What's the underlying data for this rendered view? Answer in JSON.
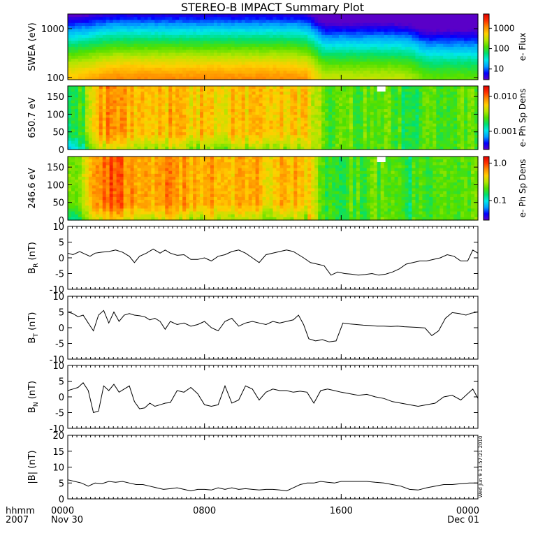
{
  "title": "STEREO-B IMPACT Summary Plot",
  "time_axis": {
    "corner_labels": [
      "hhmm",
      "2007"
    ],
    "ticks": [
      {
        "hhmm": "0000",
        "date": "Nov 30",
        "t": 0
      },
      {
        "hhmm": "0800",
        "date": "",
        "t": 8
      },
      {
        "hhmm": "1600",
        "date": "",
        "t": 16
      },
      {
        "hhmm": "0000",
        "date": "Dec 01",
        "t": 24
      }
    ],
    "range_hours": [
      0,
      24
    ]
  },
  "timestamp": "Wed Jun  9 13:57:21 2010",
  "colors": {
    "spectrogram_scale": [
      "#5a00c8",
      "#0000ff",
      "#00a0ff",
      "#00e8e8",
      "#00e070",
      "#50e000",
      "#b4e600",
      "#ffd000",
      "#ff8c00",
      "#ff3000",
      "#e00000"
    ],
    "line": "#000000",
    "data_gap": "#ffffff"
  },
  "chart_data": [
    {
      "type": "heatmap",
      "id": "swea",
      "ylabel": "SWEA (eV)",
      "yscale": "log",
      "ylim": [
        90,
        2000
      ],
      "yticks": [
        {
          "value": 100,
          "label": "100"
        },
        {
          "value": 1000,
          "label": "1000"
        }
      ],
      "colorbar": {
        "label": "e- Flux",
        "scale": "log",
        "range": [
          3,
          5000
        ],
        "ticks": [
          {
            "value": 10,
            "label": "10"
          },
          {
            "value": 100,
            "label": "100"
          },
          {
            "value": 1000,
            "label": "1000"
          }
        ]
      },
      "level_by_hour": [
        0.72,
        0.74,
        0.78,
        0.8,
        0.8,
        0.8,
        0.8,
        0.8,
        0.8,
        0.8,
        0.8,
        0.8,
        0.8,
        0.8,
        0.78,
        0.62,
        0.62,
        0.62,
        0.62,
        0.62,
        0.6,
        0.52,
        0.52,
        0.52,
        0.52
      ]
    },
    {
      "type": "heatmap",
      "id": "pad650",
      "ylabel": "650.7 eV",
      "ylim": [
        0,
        180
      ],
      "yticks": [
        {
          "value": 0,
          "label": "0"
        },
        {
          "value": 50,
          "label": "50"
        },
        {
          "value": 100,
          "label": "100"
        },
        {
          "value": 150,
          "label": "150"
        }
      ],
      "colorbar": {
        "label": "e- Ph Sp Dens",
        "scale": "log",
        "range": [
          0.0003,
          0.02
        ],
        "ticks": [
          {
            "value": 0.001,
            "label": "0.001"
          },
          {
            "value": 0.01,
            "label": "0.010"
          }
        ]
      },
      "level_by_hour": [
        0.45,
        0.5,
        0.78,
        0.82,
        0.7,
        0.72,
        0.74,
        0.7,
        0.72,
        0.68,
        0.72,
        0.74,
        0.7,
        0.72,
        0.7,
        0.5,
        0.5,
        0.5,
        0.52,
        0.48,
        0.45,
        0.5,
        0.5,
        0.5,
        0.5
      ]
    },
    {
      "type": "heatmap",
      "id": "pad246",
      "ylabel": "246.6 eV",
      "ylim": [
        0,
        180
      ],
      "yticks": [
        {
          "value": 0,
          "label": "0"
        },
        {
          "value": 50,
          "label": "50"
        },
        {
          "value": 100,
          "label": "100"
        },
        {
          "value": 150,
          "label": "150"
        }
      ],
      "colorbar": {
        "label": "e- Ph Sp Dens",
        "scale": "log",
        "range": [
          0.03,
          1.5
        ],
        "ticks": [
          {
            "value": 0.1,
            "label": "0.1"
          },
          {
            "value": 1.0,
            "label": "1.0"
          }
        ]
      },
      "level_by_hour": [
        0.5,
        0.62,
        0.85,
        0.86,
        0.74,
        0.76,
        0.8,
        0.74,
        0.76,
        0.72,
        0.74,
        0.74,
        0.72,
        0.74,
        0.72,
        0.5,
        0.48,
        0.48,
        0.5,
        0.48,
        0.44,
        0.48,
        0.48,
        0.5,
        0.5
      ]
    },
    {
      "type": "line",
      "id": "br",
      "ylabel_main": "B",
      "ylabel_sub": "R",
      "ylabel_unit": " (nT)",
      "ylim": [
        -10,
        10
      ],
      "yticks": [
        {
          "value": -10,
          "label": "-10"
        },
        {
          "value": -5,
          "label": "-5"
        },
        {
          "value": 0,
          "label": "0"
        },
        {
          "value": 5,
          "label": "5"
        },
        {
          "value": 10,
          "label": "10"
        }
      ],
      "x": [
        0,
        0.3,
        0.7,
        1.0,
        1.3,
        1.6,
        2.0,
        2.4,
        2.8,
        3.2,
        3.6,
        3.9,
        4.2,
        4.6,
        5.0,
        5.4,
        5.7,
        6.0,
        6.4,
        6.8,
        7.2,
        7.6,
        8.0,
        8.4,
        8.8,
        9.2,
        9.6,
        10.0,
        10.4,
        10.8,
        11.2,
        11.6,
        12.0,
        12.4,
        12.8,
        13.2,
        13.5,
        13.8,
        14.2,
        14.6,
        15.0,
        15.4,
        15.8,
        16.2,
        16.6,
        17.0,
        17.4,
        17.8,
        18.2,
        18.6,
        19.0,
        19.4,
        19.8,
        20.2,
        20.6,
        21.0,
        21.4,
        21.8,
        22.2,
        22.6,
        23.0,
        23.4,
        23.7,
        24.0
      ],
      "y": [
        1.5,
        1.0,
        2.0,
        1.2,
        0.5,
        1.5,
        1.8,
        2.0,
        2.5,
        1.8,
        0.5,
        -1.5,
        0.5,
        1.5,
        2.8,
        1.5,
        2.5,
        1.5,
        0.8,
        1.0,
        -0.5,
        -0.5,
        0.0,
        -1.0,
        0.5,
        1.0,
        2.0,
        2.5,
        1.5,
        0.0,
        -1.5,
        1.0,
        1.5,
        2.0,
        2.5,
        2.0,
        1.0,
        0.0,
        -1.5,
        -2.0,
        -2.5,
        -5.5,
        -4.5,
        -5.0,
        -5.2,
        -5.5,
        -5.3,
        -5.0,
        -5.5,
        -5.2,
        -4.5,
        -3.5,
        -2.0,
        -1.5,
        -1.0,
        -1.0,
        -0.5,
        0.0,
        1.0,
        0.5,
        -1.0,
        -1.0,
        2.5,
        1.5
      ]
    },
    {
      "type": "line",
      "id": "bt",
      "ylabel_main": "B",
      "ylabel_sub": "T",
      "ylabel_unit": " (nT)",
      "ylim": [
        -10,
        10
      ],
      "yticks": [
        {
          "value": -10,
          "label": "-10"
        },
        {
          "value": -5,
          "label": "-5"
        },
        {
          "value": 0,
          "label": "0"
        },
        {
          "value": 5,
          "label": "5"
        },
        {
          "value": 10,
          "label": "10"
        }
      ],
      "x": [
        0,
        0.3,
        0.6,
        0.9,
        1.2,
        1.5,
        1.8,
        2.1,
        2.4,
        2.7,
        3.0,
        3.3,
        3.6,
        3.9,
        4.2,
        4.5,
        4.8,
        5.1,
        5.4,
        5.7,
        6.0,
        6.4,
        6.8,
        7.2,
        7.6,
        8.0,
        8.4,
        8.8,
        9.2,
        9.6,
        10.0,
        10.4,
        10.8,
        11.2,
        11.6,
        12.0,
        12.4,
        12.8,
        13.2,
        13.5,
        13.8,
        14.1,
        14.5,
        14.9,
        15.3,
        15.7,
        16.1,
        16.5,
        16.9,
        17.3,
        17.7,
        18.1,
        18.5,
        18.9,
        19.3,
        19.7,
        20.1,
        20.5,
        20.9,
        21.3,
        21.7,
        22.1,
        22.5,
        22.9,
        23.3,
        23.6,
        24.0
      ],
      "y": [
        5.0,
        4.5,
        3.5,
        4.0,
        1.5,
        -1.0,
        4.0,
        5.5,
        1.5,
        5.0,
        2.0,
        4.0,
        4.5,
        4.0,
        3.8,
        3.5,
        2.5,
        3.0,
        2.0,
        -0.5,
        2.0,
        1.0,
        1.5,
        0.5,
        1.0,
        2.0,
        0.0,
        -1.0,
        2.0,
        3.0,
        0.5,
        1.5,
        2.0,
        1.5,
        1.0,
        2.0,
        1.5,
        2.0,
        2.5,
        4.0,
        1.0,
        -3.5,
        -4.2,
        -3.8,
        -4.5,
        -4.2,
        1.5,
        1.2,
        1.0,
        0.8,
        0.7,
        0.5,
        0.5,
        0.4,
        0.5,
        0.3,
        0.2,
        0.1,
        -0.1,
        -2.5,
        -1.0,
        3.0,
        4.8,
        4.5,
        4.0,
        4.6,
        5.0
      ]
    },
    {
      "type": "line",
      "id": "bn",
      "ylabel_main": "B",
      "ylabel_sub": "N",
      "ylabel_unit": " (nT)",
      "ylim": [
        -10,
        10
      ],
      "yticks": [
        {
          "value": -10,
          "label": "-10"
        },
        {
          "value": -5,
          "label": "-5"
        },
        {
          "value": 0,
          "label": "0"
        },
        {
          "value": 5,
          "label": "5"
        },
        {
          "value": 10,
          "label": "10"
        }
      ],
      "x": [
        0,
        0.3,
        0.6,
        0.9,
        1.2,
        1.5,
        1.8,
        2.1,
        2.4,
        2.7,
        3.0,
        3.3,
        3.6,
        3.9,
        4.2,
        4.5,
        4.8,
        5.1,
        5.4,
        5.7,
        6.0,
        6.4,
        6.8,
        7.2,
        7.6,
        8.0,
        8.4,
        8.8,
        9.2,
        9.6,
        10.0,
        10.4,
        10.8,
        11.2,
        11.6,
        12.0,
        12.4,
        12.8,
        13.2,
        13.6,
        14.0,
        14.4,
        14.8,
        15.2,
        15.6,
        16.0,
        16.5,
        17.0,
        17.5,
        18.0,
        18.5,
        19.0,
        19.5,
        20.0,
        20.5,
        21.0,
        21.5,
        22.0,
        22.5,
        23.0,
        23.4,
        23.7,
        24.0
      ],
      "y": [
        2.0,
        2.5,
        3.0,
        4.5,
        2.0,
        -5.0,
        -4.5,
        3.5,
        2.0,
        4.0,
        1.5,
        2.5,
        3.5,
        -1.5,
        -3.8,
        -3.5,
        -2.0,
        -3.0,
        -2.5,
        -2.0,
        -1.8,
        2.0,
        1.5,
        3.0,
        1.0,
        -2.5,
        -3.0,
        -2.5,
        3.5,
        -2.0,
        -1.0,
        3.5,
        2.5,
        -1.0,
        1.5,
        2.5,
        2.0,
        2.0,
        1.5,
        1.8,
        1.5,
        -2.0,
        2.0,
        2.5,
        2.0,
        1.5,
        1.0,
        0.5,
        0.8,
        0.0,
        -0.5,
        -1.5,
        -2.0,
        -2.5,
        -3.0,
        -2.5,
        -2.0,
        0.0,
        0.5,
        -1.0,
        1.0,
        2.5,
        -0.5
      ]
    },
    {
      "type": "line",
      "id": "bmag",
      "ylabel_main": "|B|",
      "ylabel_sub": "",
      "ylabel_unit": " (nT)",
      "ylim": [
        0,
        20
      ],
      "yticks": [
        {
          "value": 0,
          "label": "0"
        },
        {
          "value": 5,
          "label": "5"
        },
        {
          "value": 10,
          "label": "10"
        },
        {
          "value": 15,
          "label": "15"
        },
        {
          "value": 20,
          "label": "20"
        }
      ],
      "x": [
        0,
        0.4,
        0.8,
        1.2,
        1.6,
        2.0,
        2.4,
        2.8,
        3.2,
        3.6,
        4.0,
        4.4,
        4.8,
        5.2,
        5.6,
        6.0,
        6.4,
        6.8,
        7.2,
        7.6,
        8.0,
        8.4,
        8.8,
        9.2,
        9.6,
        10.0,
        10.4,
        10.8,
        11.2,
        11.6,
        12.0,
        12.4,
        12.8,
        13.2,
        13.6,
        14.0,
        14.4,
        14.8,
        15.2,
        15.6,
        16.0,
        16.5,
        17.0,
        17.5,
        18.0,
        18.5,
        19.0,
        19.5,
        20.0,
        20.5,
        21.0,
        21.5,
        22.0,
        22.5,
        23.0,
        23.5,
        24.0
      ],
      "y": [
        6.0,
        5.5,
        5.0,
        4.0,
        5.0,
        4.8,
        5.5,
        5.2,
        5.5,
        5.0,
        4.5,
        4.5,
        4.0,
        3.5,
        3.0,
        3.2,
        3.5,
        3.0,
        2.5,
        3.0,
        3.0,
        2.8,
        3.5,
        3.0,
        3.5,
        3.0,
        3.2,
        3.0,
        2.8,
        3.0,
        3.0,
        2.8,
        2.5,
        3.5,
        4.5,
        5.0,
        5.0,
        5.5,
        5.2,
        5.0,
        5.5,
        5.5,
        5.5,
        5.5,
        5.2,
        5.0,
        4.5,
        4.0,
        3.0,
        2.8,
        3.5,
        4.0,
        4.5,
        4.5,
        4.8,
        5.0,
        5.0
      ]
    }
  ]
}
